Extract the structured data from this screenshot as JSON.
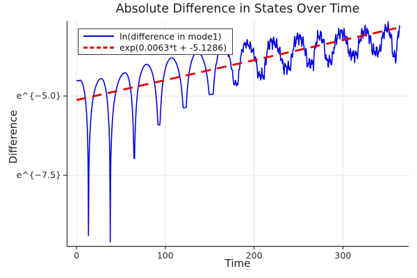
{
  "chart_data": {
    "type": "line",
    "title": "Absolute Difference in States Over Time",
    "xlabel": "Time",
    "ylabel": "Difference",
    "xlim": [
      -11,
      374
    ],
    "ylim_ln": [
      -9.73,
      -2.63
    ],
    "grid": true,
    "legend_position": "top-left",
    "background": "#ffffff",
    "grid_color": "#e6e6e6",
    "axis_color": "#2a2a2a",
    "xticks": [
      {
        "value": 0,
        "label": "0"
      },
      {
        "value": 100,
        "label": "100"
      },
      {
        "value": 200,
        "label": "200"
      },
      {
        "value": 300,
        "label": "300"
      }
    ],
    "yticks": [
      {
        "value_ln": -5.0,
        "label": "e^{−5.0}"
      },
      {
        "value_ln": -7.5,
        "label": "e^{−7.5}"
      }
    ],
    "series": [
      {
        "name": "ln(difference in mode1)",
        "color": "#0000e0",
        "style": "solid",
        "model": {
          "kind": "log-abs-oscillation",
          "start": [
            0,
            -4.52
          ],
          "end": [
            364,
            -2.86
          ],
          "dips": [
            [
              13.5,
              -9.4
            ],
            [
              38,
              -9.6
            ],
            [
              65,
              -6.97
            ],
            [
              93,
              -5.91
            ],
            [
              122,
              -5.37
            ],
            [
              152,
              -4.95
            ],
            [
              180,
              -4.6
            ],
            [
              209,
              -4.35
            ],
            [
              238,
              -4.1
            ],
            [
              264,
              -3.98
            ],
            [
              284,
              -3.9
            ],
            [
              312,
              -3.7
            ],
            [
              338,
              -3.6
            ],
            [
              359,
              -3.75
            ]
          ],
          "peaks": [
            [
              4,
              -4.5
            ],
            [
              28,
              -4.45
            ],
            [
              55,
              -4.27
            ],
            [
              79,
              -4.0
            ],
            [
              107,
              -3.8
            ],
            [
              136,
              -3.62
            ],
            [
              165,
              -3.47
            ],
            [
              191,
              -3.35
            ],
            [
              220,
              -3.28
            ],
            [
              250,
              -3.15
            ],
            [
              274,
              -3.1
            ],
            [
              298,
              -3.0
            ],
            [
              325,
              -2.95
            ],
            [
              350,
              -2.87
            ],
            [
              364,
              -2.86
            ]
          ],
          "noise": {
            "start_t": 150,
            "full_t": 210,
            "amplitudes": [
              0.12,
              0.08,
              0.06
            ]
          }
        }
      },
      {
        "name": "exp(0.0063*t + -5.1286)",
        "color": "#e60000",
        "style": "dashed",
        "fit": {
          "slope": 0.0063,
          "intercept": -5.1286,
          "t_range": [
            0,
            360
          ]
        }
      }
    ]
  }
}
